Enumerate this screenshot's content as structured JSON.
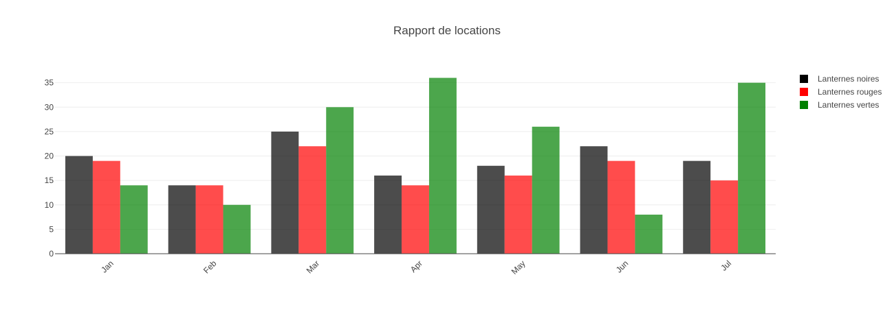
{
  "chart_data": {
    "type": "bar",
    "title": "Rapport de locations",
    "xlabel": "",
    "ylabel": "",
    "categories": [
      "Jan",
      "Feb",
      "Mar",
      "Apr",
      "May",
      "Jun",
      "Jul"
    ],
    "series": [
      {
        "name": "Lanternes noires",
        "color": "#000000",
        "values": [
          20,
          14,
          25,
          16,
          18,
          22,
          19
        ]
      },
      {
        "name": "Lanternes rouges",
        "color": "#ff0000",
        "values": [
          19,
          14,
          22,
          14,
          16,
          19,
          15
        ]
      },
      {
        "name": "Lanternes vertes",
        "color": "#008000",
        "values": [
          14,
          10,
          30,
          36,
          26,
          8,
          35
        ]
      }
    ],
    "ylim": [
      0,
      37.9
    ],
    "yticks": [
      0,
      5,
      10,
      15,
      20,
      25,
      30,
      35
    ],
    "grid": true,
    "legend_position": "top-right",
    "bar_opacity": 0.7
  }
}
